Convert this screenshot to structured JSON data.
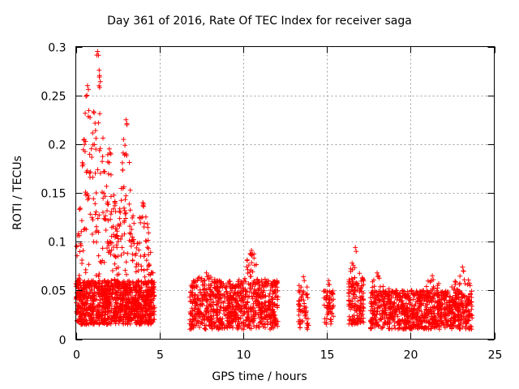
{
  "chart_data": {
    "type": "scatter",
    "title": "Day 361 of 2016, Rate Of TEC Index for receiver saga",
    "xlabel": "GPS time / hours",
    "ylabel": "ROTI / TECUs",
    "xlim": [
      0,
      25
    ],
    "ylim": [
      0,
      0.3
    ],
    "xticks": [
      0,
      5,
      10,
      15,
      20,
      25
    ],
    "xtick_labels": [
      "0",
      "5",
      "10",
      "15",
      "20",
      "25"
    ],
    "yticks": [
      0,
      0.05,
      0.1,
      0.15,
      0.2,
      0.25,
      0.3
    ],
    "ytick_labels": [
      "0",
      "0.05",
      "0.1",
      "0.15",
      "0.2",
      "0.25",
      "0.3"
    ],
    "grid": true,
    "marker": "plus",
    "color": "#ff0000",
    "clusters": [
      {
        "x": [
          0.0,
          4.7
        ],
        "y_base": [
          0.015,
          0.06
        ],
        "peaks": [
          {
            "x": 1.3,
            "y": 0.295
          },
          {
            "x": 0.7,
            "y": 0.26
          },
          {
            "x": 3.0,
            "y": 0.225
          },
          {
            "x": 2.0,
            "y": 0.195
          },
          {
            "x": 4.0,
            "y": 0.14
          }
        ],
        "count": 1400
      },
      {
        "x": [
          6.8,
          12.1
        ],
        "y_base": [
          0.01,
          0.06
        ],
        "peaks": [
          {
            "x": 10.5,
            "y": 0.091
          },
          {
            "x": 7.8,
            "y": 0.068
          }
        ],
        "count": 900
      },
      {
        "x": [
          13.3,
          13.9
        ],
        "y_base": [
          0.01,
          0.05
        ],
        "peaks": [
          {
            "x": 13.6,
            "y": 0.064
          }
        ],
        "count": 60
      },
      {
        "x": [
          14.8,
          15.4
        ],
        "y_base": [
          0.015,
          0.05
        ],
        "peaks": [
          {
            "x": 15.1,
            "y": 0.06
          }
        ],
        "count": 60
      },
      {
        "x": [
          16.3,
          17.2
        ],
        "y_base": [
          0.015,
          0.06
        ],
        "peaks": [
          {
            "x": 16.7,
            "y": 0.094
          }
        ],
        "count": 150
      },
      {
        "x": [
          17.6,
          23.7
        ],
        "y_base": [
          0.01,
          0.05
        ],
        "peaks": [
          {
            "x": 23.1,
            "y": 0.074
          },
          {
            "x": 21.3,
            "y": 0.065
          },
          {
            "x": 18.0,
            "y": 0.068
          }
        ],
        "count": 1000
      }
    ]
  }
}
